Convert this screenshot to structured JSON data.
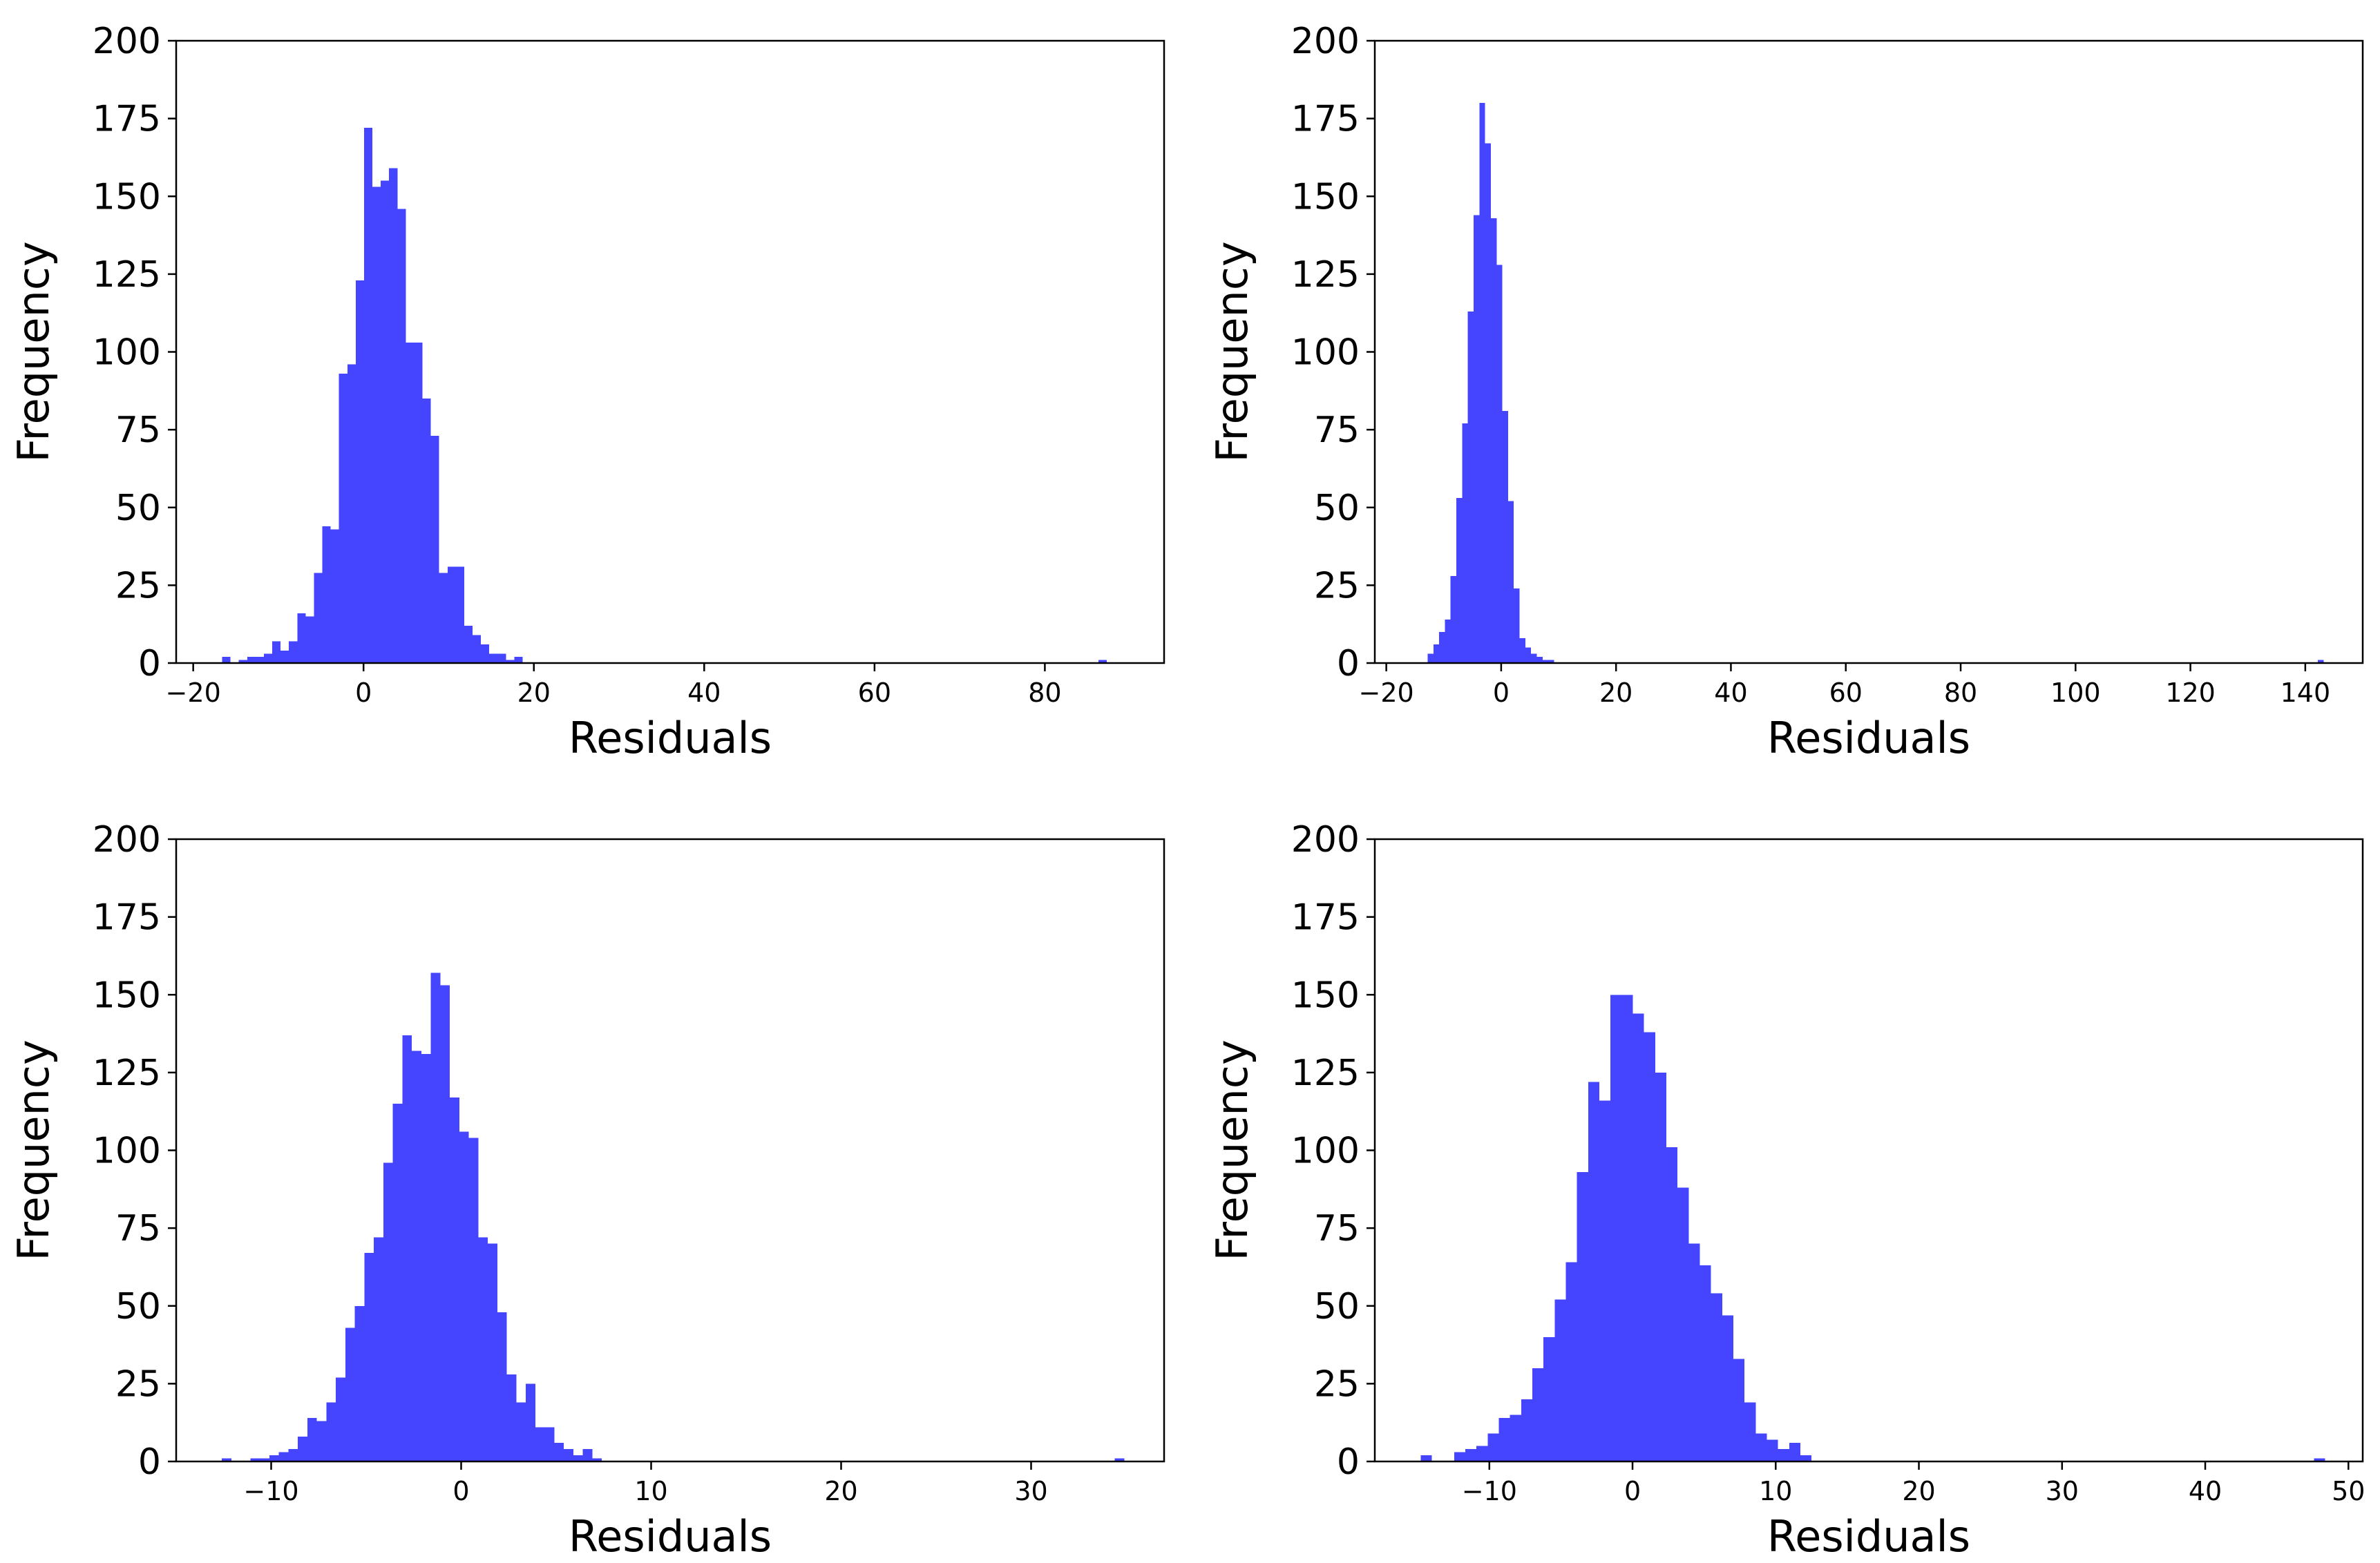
{
  "chart_data": [
    {
      "type": "bar",
      "histogram": true,
      "color": "#4545ff",
      "title": "",
      "xlabel": "Residuals",
      "ylabel": "Frequency",
      "xlim": [
        -22,
        94
      ],
      "ylim": [
        0,
        200
      ],
      "xticks": [
        -20,
        0,
        20,
        40,
        60,
        80
      ],
      "xtick_labels": [
        "−20",
        "0",
        "20",
        "40",
        "60",
        "80"
      ],
      "yticks": [
        0,
        25,
        50,
        75,
        100,
        125,
        150,
        175,
        200
      ],
      "ytick_labels": [
        "0",
        "25",
        "50",
        "75",
        "100",
        "125",
        "150",
        "175",
        "200"
      ],
      "bin_start": -16.6,
      "bin_width": 0.98,
      "counts": [
        2,
        0,
        1,
        2,
        2,
        3,
        7,
        4,
        7,
        16,
        15,
        29,
        44,
        43,
        93,
        96,
        123,
        172,
        153,
        155,
        159,
        146,
        103,
        103,
        85,
        73,
        29,
        31,
        31,
        12,
        9,
        6,
        3,
        3,
        1,
        2,
        0,
        0,
        0,
        0,
        0,
        0,
        0,
        0,
        0,
        0,
        0,
        0,
        0,
        0,
        0,
        0,
        0,
        0,
        0,
        0,
        0,
        0,
        0,
        0,
        0,
        0,
        0,
        0,
        0,
        0,
        0,
        0,
        0,
        0,
        0,
        0,
        0,
        0,
        0,
        0,
        0,
        0,
        0,
        0,
        0,
        0,
        0,
        0,
        0,
        0,
        0,
        0,
        0,
        0,
        0,
        0,
        0,
        0,
        0,
        0,
        0,
        0,
        0,
        0,
        0,
        0,
        0,
        0,
        0,
        1
      ]
    },
    {
      "type": "bar",
      "histogram": true,
      "color": "#4545ff",
      "title": "",
      "xlabel": "Residuals",
      "ylabel": "Frequency",
      "xlim": [
        -22,
        150
      ],
      "ylim": [
        0,
        200
      ],
      "xticks": [
        -20,
        0,
        20,
        40,
        60,
        80,
        100,
        120,
        140
      ],
      "xtick_labels": [
        "−20",
        "0",
        "20",
        "40",
        "60",
        "80",
        "100",
        "120",
        "140"
      ],
      "yticks": [
        0,
        25,
        50,
        75,
        100,
        125,
        150,
        175,
        200
      ],
      "ytick_labels": [
        "0",
        "25",
        "50",
        "75",
        "100",
        "125",
        "150",
        "175",
        "200"
      ],
      "bin_start": -12.8,
      "bin_width": 1.0,
      "counts": [
        3,
        6,
        10,
        14,
        28,
        53,
        77,
        113,
        144,
        180,
        167,
        143,
        128,
        81,
        52,
        24,
        8,
        5,
        3,
        2,
        1,
        1,
        0,
        0,
        0,
        0,
        0,
        0,
        0,
        0,
        0,
        0,
        0,
        0,
        0,
        0,
        0,
        0,
        0,
        0,
        0,
        0,
        0,
        0,
        0,
        0,
        0,
        0,
        0,
        0,
        0,
        0,
        0,
        0,
        0,
        0,
        0,
        0,
        0,
        0,
        0,
        0,
        0,
        0,
        0,
        0,
        0,
        0,
        0,
        0,
        0,
        0,
        0,
        0,
        0,
        0,
        0,
        0,
        0,
        0,
        0,
        0,
        0,
        0,
        0,
        0,
        0,
        0,
        0,
        0,
        0,
        0,
        0,
        0,
        0,
        0,
        0,
        0,
        0,
        0,
        0,
        0,
        0,
        0,
        0,
        0,
        0,
        0,
        0,
        0,
        0,
        0,
        0,
        0,
        0,
        0,
        0,
        0,
        0,
        0,
        0,
        0,
        0,
        0,
        0,
        0,
        0,
        0,
        0,
        0,
        0,
        0,
        0,
        0,
        0,
        0,
        0,
        0,
        0,
        0,
        0,
        0,
        0,
        0,
        0,
        0,
        0,
        0,
        0,
        0,
        0,
        0,
        0,
        0,
        0,
        1
      ]
    },
    {
      "type": "bar",
      "histogram": true,
      "color": "#4545ff",
      "title": "",
      "xlabel": "Residuals",
      "ylabel": "Frequency",
      "xlim": [
        -15,
        37
      ],
      "ylim": [
        0,
        200
      ],
      "xticks": [
        -10,
        0,
        10,
        20,
        30
      ],
      "xtick_labels": [
        "−10",
        "0",
        "10",
        "20",
        "30"
      ],
      "yticks": [
        0,
        25,
        50,
        75,
        100,
        125,
        150,
        175,
        200
      ],
      "ytick_labels": [
        "0",
        "25",
        "50",
        "75",
        "100",
        "125",
        "150",
        "175",
        "200"
      ],
      "bin_start": -12.6,
      "bin_width": 0.5,
      "counts": [
        1,
        0,
        0,
        1,
        1,
        2,
        3,
        4,
        8,
        14,
        13,
        19,
        27,
        43,
        50,
        67,
        72,
        96,
        115,
        137,
        132,
        131,
        157,
        153,
        117,
        106,
        104,
        72,
        70,
        48,
        28,
        19,
        25,
        11,
        11,
        6,
        4,
        2,
        4,
        1,
        0,
        0,
        0,
        0,
        0,
        0,
        0,
        0,
        0,
        0,
        0,
        0,
        0,
        0,
        0,
        0,
        0,
        0,
        0,
        0,
        0,
        0,
        0,
        0,
        0,
        0,
        0,
        0,
        0,
        0,
        0,
        0,
        0,
        0,
        0,
        0,
        0,
        0,
        0,
        0,
        0,
        0,
        0,
        0,
        0,
        0,
        0,
        0,
        0,
        0,
        0,
        0,
        0,
        0,
        1
      ]
    },
    {
      "type": "bar",
      "histogram": true,
      "color": "#4545ff",
      "title": "",
      "xlabel": "Residuals",
      "ylabel": "Frequency",
      "xlim": [
        -18,
        51
      ],
      "ylim": [
        0,
        200
      ],
      "xticks": [
        -10,
        0,
        10,
        20,
        30,
        40,
        50
      ],
      "xtick_labels": [
        "−10",
        "0",
        "10",
        "20",
        "30",
        "40",
        "50"
      ],
      "yticks": [
        0,
        25,
        50,
        75,
        100,
        125,
        150,
        175,
        200
      ],
      "ytick_labels": [
        "0",
        "25",
        "50",
        "75",
        "100",
        "125",
        "150",
        "175",
        "200"
      ],
      "bin_start": -14.8,
      "bin_width": 0.78,
      "counts": [
        2,
        0,
        0,
        3,
        4,
        5,
        9,
        14,
        15,
        20,
        30,
        40,
        52,
        64,
        93,
        122,
        116,
        150,
        150,
        144,
        138,
        125,
        101,
        88,
        70,
        63,
        54,
        47,
        33,
        19,
        9,
        7,
        4,
        6,
        2,
        0,
        0,
        0,
        0,
        0,
        0,
        0,
        0,
        0,
        0,
        0,
        0,
        0,
        0,
        0,
        0,
        0,
        0,
        0,
        0,
        0,
        0,
        0,
        0,
        0,
        0,
        0,
        0,
        0,
        0,
        0,
        0,
        0,
        0,
        0,
        0,
        0,
        0,
        0,
        0,
        0,
        0,
        0,
        0,
        0,
        1
      ]
    }
  ]
}
